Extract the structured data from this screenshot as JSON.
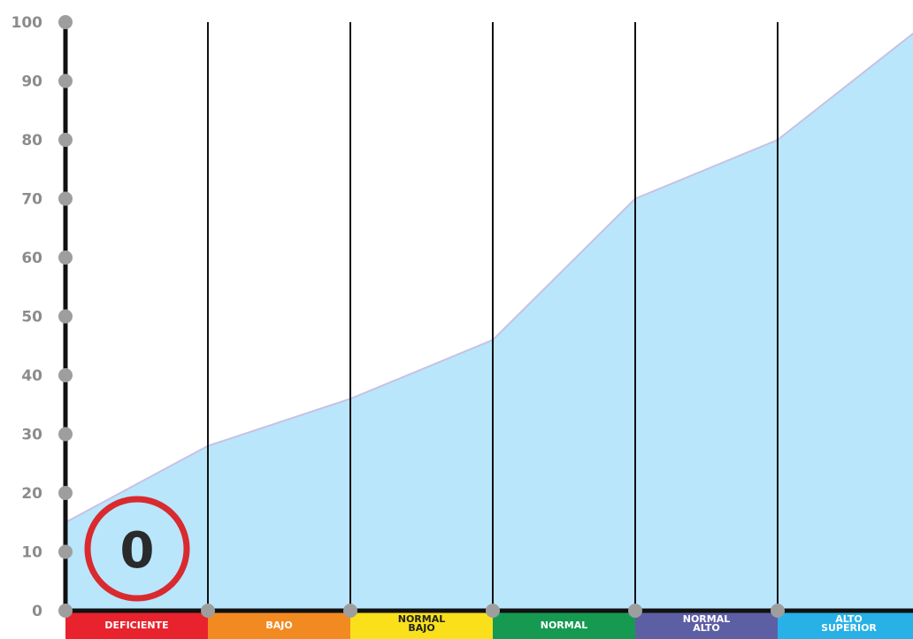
{
  "chart_data": {
    "type": "area",
    "ylim": [
      0,
      100
    ],
    "y_ticks": [
      "100",
      "90",
      "80",
      "70",
      "60",
      "50",
      "40",
      "30",
      "20",
      "10",
      "0"
    ],
    "categories": [
      {
        "label": [
          "DEFICIENTE"
        ],
        "color": "#e8232e"
      },
      {
        "label": [
          "BAJO"
        ],
        "color": "#f28a22"
      },
      {
        "label": [
          "NORMAL",
          "BAJO"
        ],
        "color": "#f9e01b"
      },
      {
        "label": [
          "NORMAL"
        ],
        "color": "#169a52"
      },
      {
        "label": [
          "NORMAL",
          "ALTO"
        ],
        "color": "#5d5fa5"
      },
      {
        "label": [
          "ALTO",
          "SUPERIOR"
        ],
        "color": "#27b1e6"
      }
    ],
    "x": [
      0,
      1,
      2,
      3,
      4,
      5,
      6
    ],
    "values": [
      15,
      28,
      36,
      46,
      70,
      80,
      99
    ],
    "area_color": "#b9e6fb",
    "area_line_color": "#c6c2e4",
    "grid": true,
    "score": {
      "value": "0",
      "ring_color": "#d92a2f"
    }
  }
}
